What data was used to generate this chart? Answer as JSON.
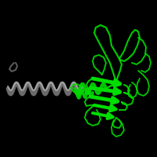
{
  "background_color": "#000000",
  "green_color": "#00dd00",
  "gray_color": "#aaaaaa",
  "dark_gray": "#777777",
  "figsize": [
    2.0,
    2.0
  ],
  "dpi": 100
}
